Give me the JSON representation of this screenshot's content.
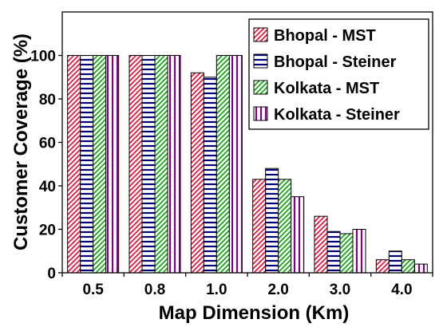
{
  "chart_data": {
    "type": "bar",
    "xlabel": "Map Dimension (Km)",
    "ylabel": "Customer Coverage (%)",
    "ylim": [
      0,
      120
    ],
    "yticks": [
      0,
      20,
      40,
      60,
      80,
      100
    ],
    "categories": [
      "0.5",
      "0.8",
      "1.0",
      "2.0",
      "3.0",
      "4.0"
    ],
    "grid": false,
    "legend_position": "top-right",
    "series": [
      {
        "name": "Bhopal - MST",
        "color": "#e8002a",
        "pattern": "diagonal-hatch",
        "values": [
          100,
          100,
          92,
          43,
          26,
          6
        ]
      },
      {
        "name": "Bhopal - Steiner",
        "color": "#00007a",
        "pattern": "horizontal-hatch",
        "values": [
          100,
          100,
          90,
          48,
          19,
          10
        ]
      },
      {
        "name": "Kolkata - MST",
        "color": "#00a000",
        "pattern": "diagonal-hatch",
        "values": [
          100,
          100,
          100,
          43,
          18,
          6
        ]
      },
      {
        "name": "Kolkata - Steiner",
        "color": "#800080",
        "pattern": "vertical-hatch",
        "values": [
          100,
          100,
          100,
          35,
          20,
          4
        ]
      }
    ]
  }
}
